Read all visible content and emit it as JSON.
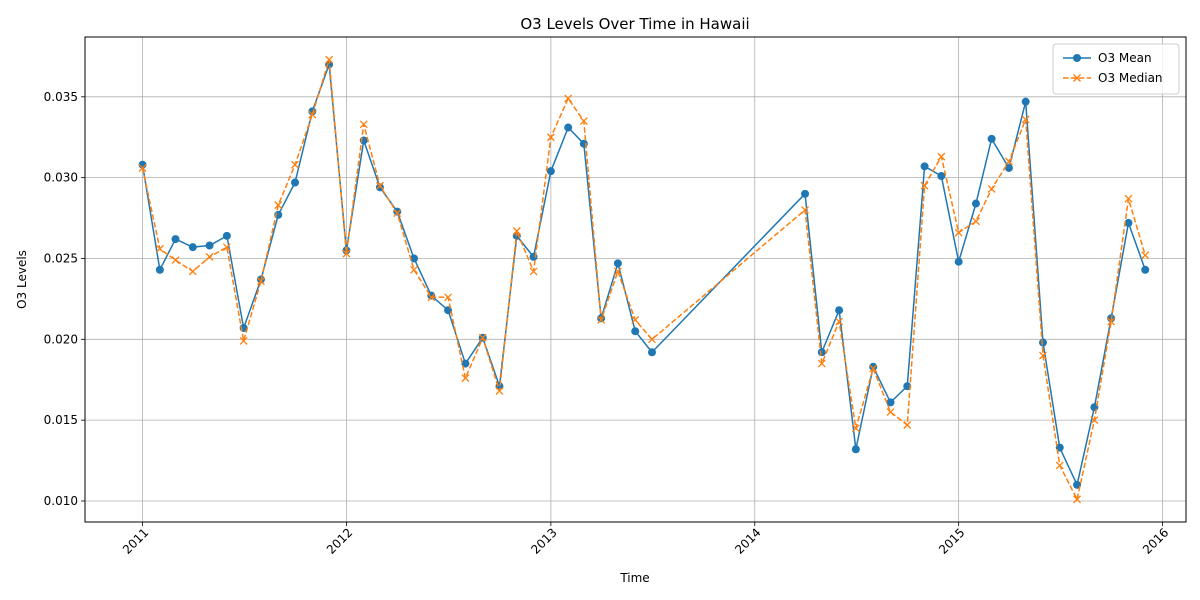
{
  "chart_data": {
    "type": "line",
    "title": "O3 Levels Over Time in Hawaii",
    "xlabel": "Time",
    "ylabel": "O3 Levels",
    "x_axis": "date",
    "xlim": [
      "2010-09-20",
      "2016-02-12"
    ],
    "ylim": [
      0.0087,
      0.0387
    ],
    "x_ticks": [
      "2011-01-01",
      "2012-01-01",
      "2013-01-01",
      "2014-01-01",
      "2015-01-01",
      "2016-01-01"
    ],
    "x_tick_labels": [
      "2011",
      "2012",
      "2013",
      "2014",
      "2015",
      "2016"
    ],
    "y_ticks": [
      0.01,
      0.015,
      0.02,
      0.025,
      0.03,
      0.035
    ],
    "y_tick_labels": [
      "0.010",
      "0.015",
      "0.020",
      "0.025",
      "0.030",
      "0.035"
    ],
    "grid": true,
    "legend": "top-right",
    "x": [
      "2011-01-01",
      "2011-02-01",
      "2011-03-01",
      "2011-04-01",
      "2011-05-01",
      "2011-06-01",
      "2011-07-01",
      "2011-08-01",
      "2011-09-01",
      "2011-10-01",
      "2011-11-01",
      "2011-12-01",
      "2012-01-01",
      "2012-02-01",
      "2012-03-01",
      "2012-04-01",
      "2012-05-01",
      "2012-06-01",
      "2012-07-01",
      "2012-08-01",
      "2012-09-01",
      "2012-10-01",
      "2012-11-01",
      "2012-12-01",
      "2013-01-01",
      "2013-02-01",
      "2013-03-01",
      "2013-04-01",
      "2013-05-01",
      "2013-06-01",
      "2013-07-01",
      "2014-04-01",
      "2014-05-01",
      "2014-06-01",
      "2014-07-01",
      "2014-08-01",
      "2014-09-01",
      "2014-10-01",
      "2014-11-01",
      "2014-12-01",
      "2015-01-01",
      "2015-02-01",
      "2015-03-01",
      "2015-04-01",
      "2015-05-01",
      "2015-06-01",
      "2015-07-01",
      "2015-08-01",
      "2015-09-01",
      "2015-10-01",
      "2015-11-01",
      "2015-12-01"
    ],
    "series": [
      {
        "name": "O3 Mean",
        "color": "#1f77b4",
        "style": "solid",
        "marker": "circle",
        "values": [
          0.0308,
          0.0243,
          0.0262,
          0.0257,
          0.0258,
          0.0264,
          0.0207,
          0.0237,
          0.0277,
          0.0297,
          0.0341,
          0.037,
          0.0255,
          0.0323,
          0.0294,
          0.0279,
          0.025,
          0.0227,
          0.0218,
          0.0185,
          0.0201,
          0.0171,
          0.0264,
          0.0251,
          0.0304,
          0.0331,
          0.0321,
          0.0213,
          0.0247,
          0.0205,
          0.0192,
          0.029,
          0.0192,
          0.0218,
          0.0132,
          0.0183,
          0.0161,
          0.0171,
          0.0307,
          0.0301,
          0.0248,
          0.0284,
          0.0324,
          0.0306,
          0.0347,
          0.0198,
          0.0133,
          0.011,
          0.0158,
          0.0213,
          0.0272,
          0.0243
        ]
      },
      {
        "name": "O3 Median",
        "color": "#ff7f0e",
        "style": "dashed",
        "marker": "x",
        "values": [
          0.0306,
          0.0256,
          0.0249,
          0.0242,
          0.0251,
          0.0257,
          0.0199,
          0.0236,
          0.0283,
          0.0308,
          0.0339,
          0.0373,
          0.0253,
          0.0333,
          0.0295,
          0.0278,
          0.0243,
          0.0226,
          0.0226,
          0.0176,
          0.0201,
          0.0168,
          0.0267,
          0.0242,
          0.0325,
          0.0349,
          0.0335,
          0.0212,
          0.0242,
          0.0212,
          0.02,
          0.028,
          0.0185,
          0.0211,
          0.0145,
          0.0182,
          0.0155,
          0.0147,
          0.0295,
          0.0313,
          0.0266,
          0.0273,
          0.0293,
          0.031,
          0.0336,
          0.019,
          0.0122,
          0.0101,
          0.015,
          0.0211,
          0.0287,
          0.0252
        ]
      }
    ]
  }
}
